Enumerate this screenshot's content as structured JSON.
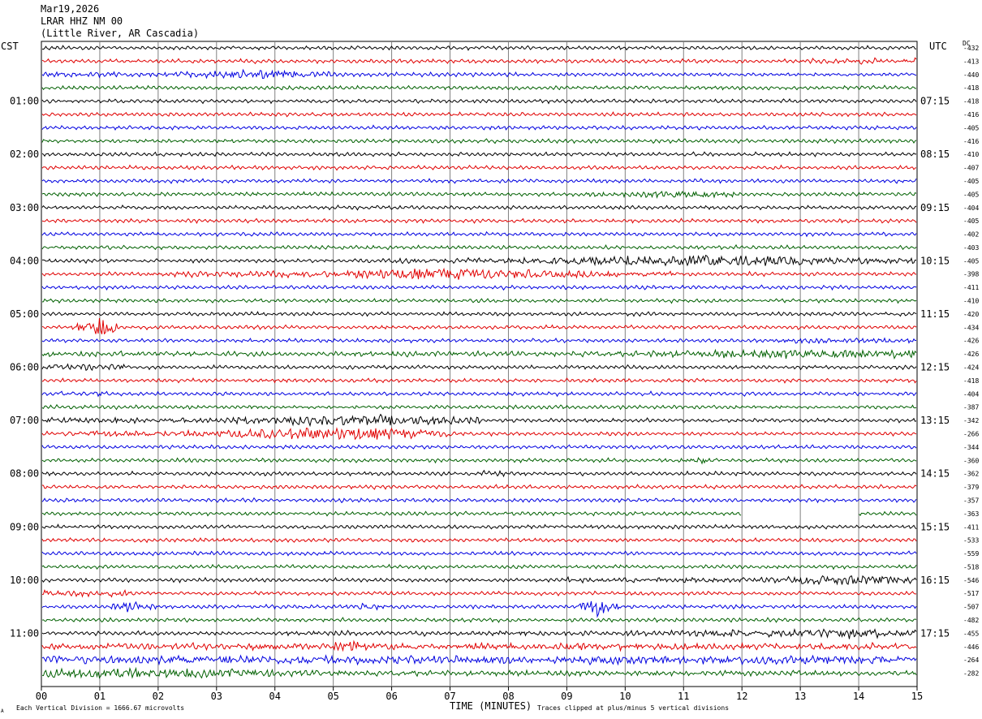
{
  "header": {
    "date": "Mar19,2026",
    "station": "LRAR HHZ NM 00",
    "location": "(Little River, AR Cascadia)"
  },
  "left_tz": "CST",
  "right_tz": "UTC",
  "dc_label": "DC",
  "footer": {
    "scale_note": "Each Vertical Division = 1666.67 microvolts",
    "clip_note": "Traces clipped at plus/minus 5 vertical divisions",
    "corner_mark": "A"
  },
  "colors": {
    "trace_cycle": [
      "#000000",
      "#e00000",
      "#0000e0",
      "#006000"
    ],
    "grid": "#808080",
    "gap": "#ffffff"
  },
  "chart_data": {
    "type": "line",
    "title": "",
    "xlabel": "TIME (MINUTES)",
    "x_ticks": [
      "00",
      "01",
      "02",
      "03",
      "04",
      "05",
      "06",
      "07",
      "08",
      "09",
      "10",
      "11",
      "12",
      "13",
      "14",
      "15"
    ],
    "xlim": [
      0,
      15
    ],
    "rows_per_hour": 4,
    "left_hour_labels": [
      "01:00",
      "02:00",
      "03:00",
      "04:00",
      "05:00",
      "06:00",
      "07:00",
      "08:00",
      "09:00",
      "10:00",
      "11:00"
    ],
    "right_hour_labels": [
      "07:15",
      "08:15",
      "09:15",
      "10:15",
      "11:15",
      "12:15",
      "13:15",
      "14:15",
      "15:15",
      "16:15",
      "17:15"
    ],
    "dc_offsets": [
      "-432",
      "-413",
      "-440",
      "-418",
      "-418",
      "-416",
      "-405",
      "-416",
      "-410",
      "-407",
      "-405",
      "-405",
      "-404",
      "-405",
      "-402",
      "-403",
      "-405",
      "-398",
      "-411",
      "-410",
      "-420",
      "-434",
      "-426",
      "-426",
      "-424",
      "-418",
      "-404",
      "-387",
      "-342",
      "-266",
      "-344",
      "-360",
      "-362",
      "-379",
      "-357",
      "-363",
      "-411",
      "-533",
      "-559",
      "-518",
      "-546",
      "-517",
      "-507",
      "-482",
      "-455",
      "-446",
      "-264",
      "-282"
    ],
    "activity_events": [
      {
        "row": 2,
        "from_min": 0.0,
        "to_min": 5.0,
        "level": 3,
        "peak_min": 3.7
      },
      {
        "row": 1,
        "from_min": 13.0,
        "to_min": 15.0,
        "level": 1.6
      },
      {
        "row": 11,
        "from_min": 9.0,
        "to_min": 12.0,
        "level": 2.5,
        "peak_min": 11.0
      },
      {
        "row": 16,
        "from_min": 6.0,
        "to_min": 15.0,
        "level": 4.5,
        "peak_min": 11.0
      },
      {
        "row": 17,
        "from_min": 2.0,
        "to_min": 11.0,
        "level": 4,
        "peak_min": 7.0
      },
      {
        "row": 21,
        "from_min": 0.6,
        "to_min": 1.3,
        "level": 9,
        "peak_min": 1.0
      },
      {
        "row": 22,
        "from_min": 12.5,
        "to_min": 15.0,
        "level": 1.8
      },
      {
        "row": 23,
        "from_min": 0.0,
        "to_min": 15.0,
        "level": 3,
        "peak_min": 14.0
      },
      {
        "row": 24,
        "from_min": 0.0,
        "to_min": 1.5,
        "level": 2.5
      },
      {
        "row": 26,
        "from_min": 0.3,
        "to_min": 1.2,
        "level": 1.5
      },
      {
        "row": 28,
        "from_min": 0.0,
        "to_min": 7.5,
        "level": 4,
        "peak_min": 5.5
      },
      {
        "row": 29,
        "from_min": 0.0,
        "to_min": 7.0,
        "level": 5,
        "peak_min": 5.0
      },
      {
        "row": 31,
        "from_min": 11.0,
        "to_min": 11.6,
        "level": 3,
        "peak_min": 11.3
      },
      {
        "row": 32,
        "from_min": 7.5,
        "to_min": 8.0,
        "level": 2
      },
      {
        "row": 40,
        "from_min": 9.0,
        "to_min": 15.0,
        "level": 3.5,
        "peak_min": 14.0
      },
      {
        "row": 41,
        "from_min": 0.0,
        "to_min": 1.5,
        "level": 2.5
      },
      {
        "row": 42,
        "from_min": 1.2,
        "to_min": 2.0,
        "level": 4,
        "peak_min": 1.5
      },
      {
        "row": 42,
        "from_min": 5.2,
        "to_min": 5.8,
        "level": 3,
        "peak_min": 5.6
      },
      {
        "row": 42,
        "from_min": 9.2,
        "to_min": 9.9,
        "level": 8,
        "peak_min": 9.5
      },
      {
        "row": 44,
        "from_min": 4.0,
        "to_min": 15.0,
        "level": 3,
        "peak_min": 13.5
      },
      {
        "row": 45,
        "from_min": 0.0,
        "to_min": 15.0,
        "level": 2.5
      },
      {
        "row": 45,
        "from_min": 5.0,
        "to_min": 5.6,
        "level": 6,
        "peak_min": 5.3
      },
      {
        "row": 46,
        "from_min": 0.0,
        "to_min": 15.0,
        "level": 3.5
      },
      {
        "row": 47,
        "from_min": 0.0,
        "to_min": 15.0,
        "level": 3.5,
        "peak_min": 0.9
      }
    ],
    "data_gaps": [
      {
        "row": 35,
        "from_min": 12.0,
        "to_min": 14.0
      }
    ]
  }
}
